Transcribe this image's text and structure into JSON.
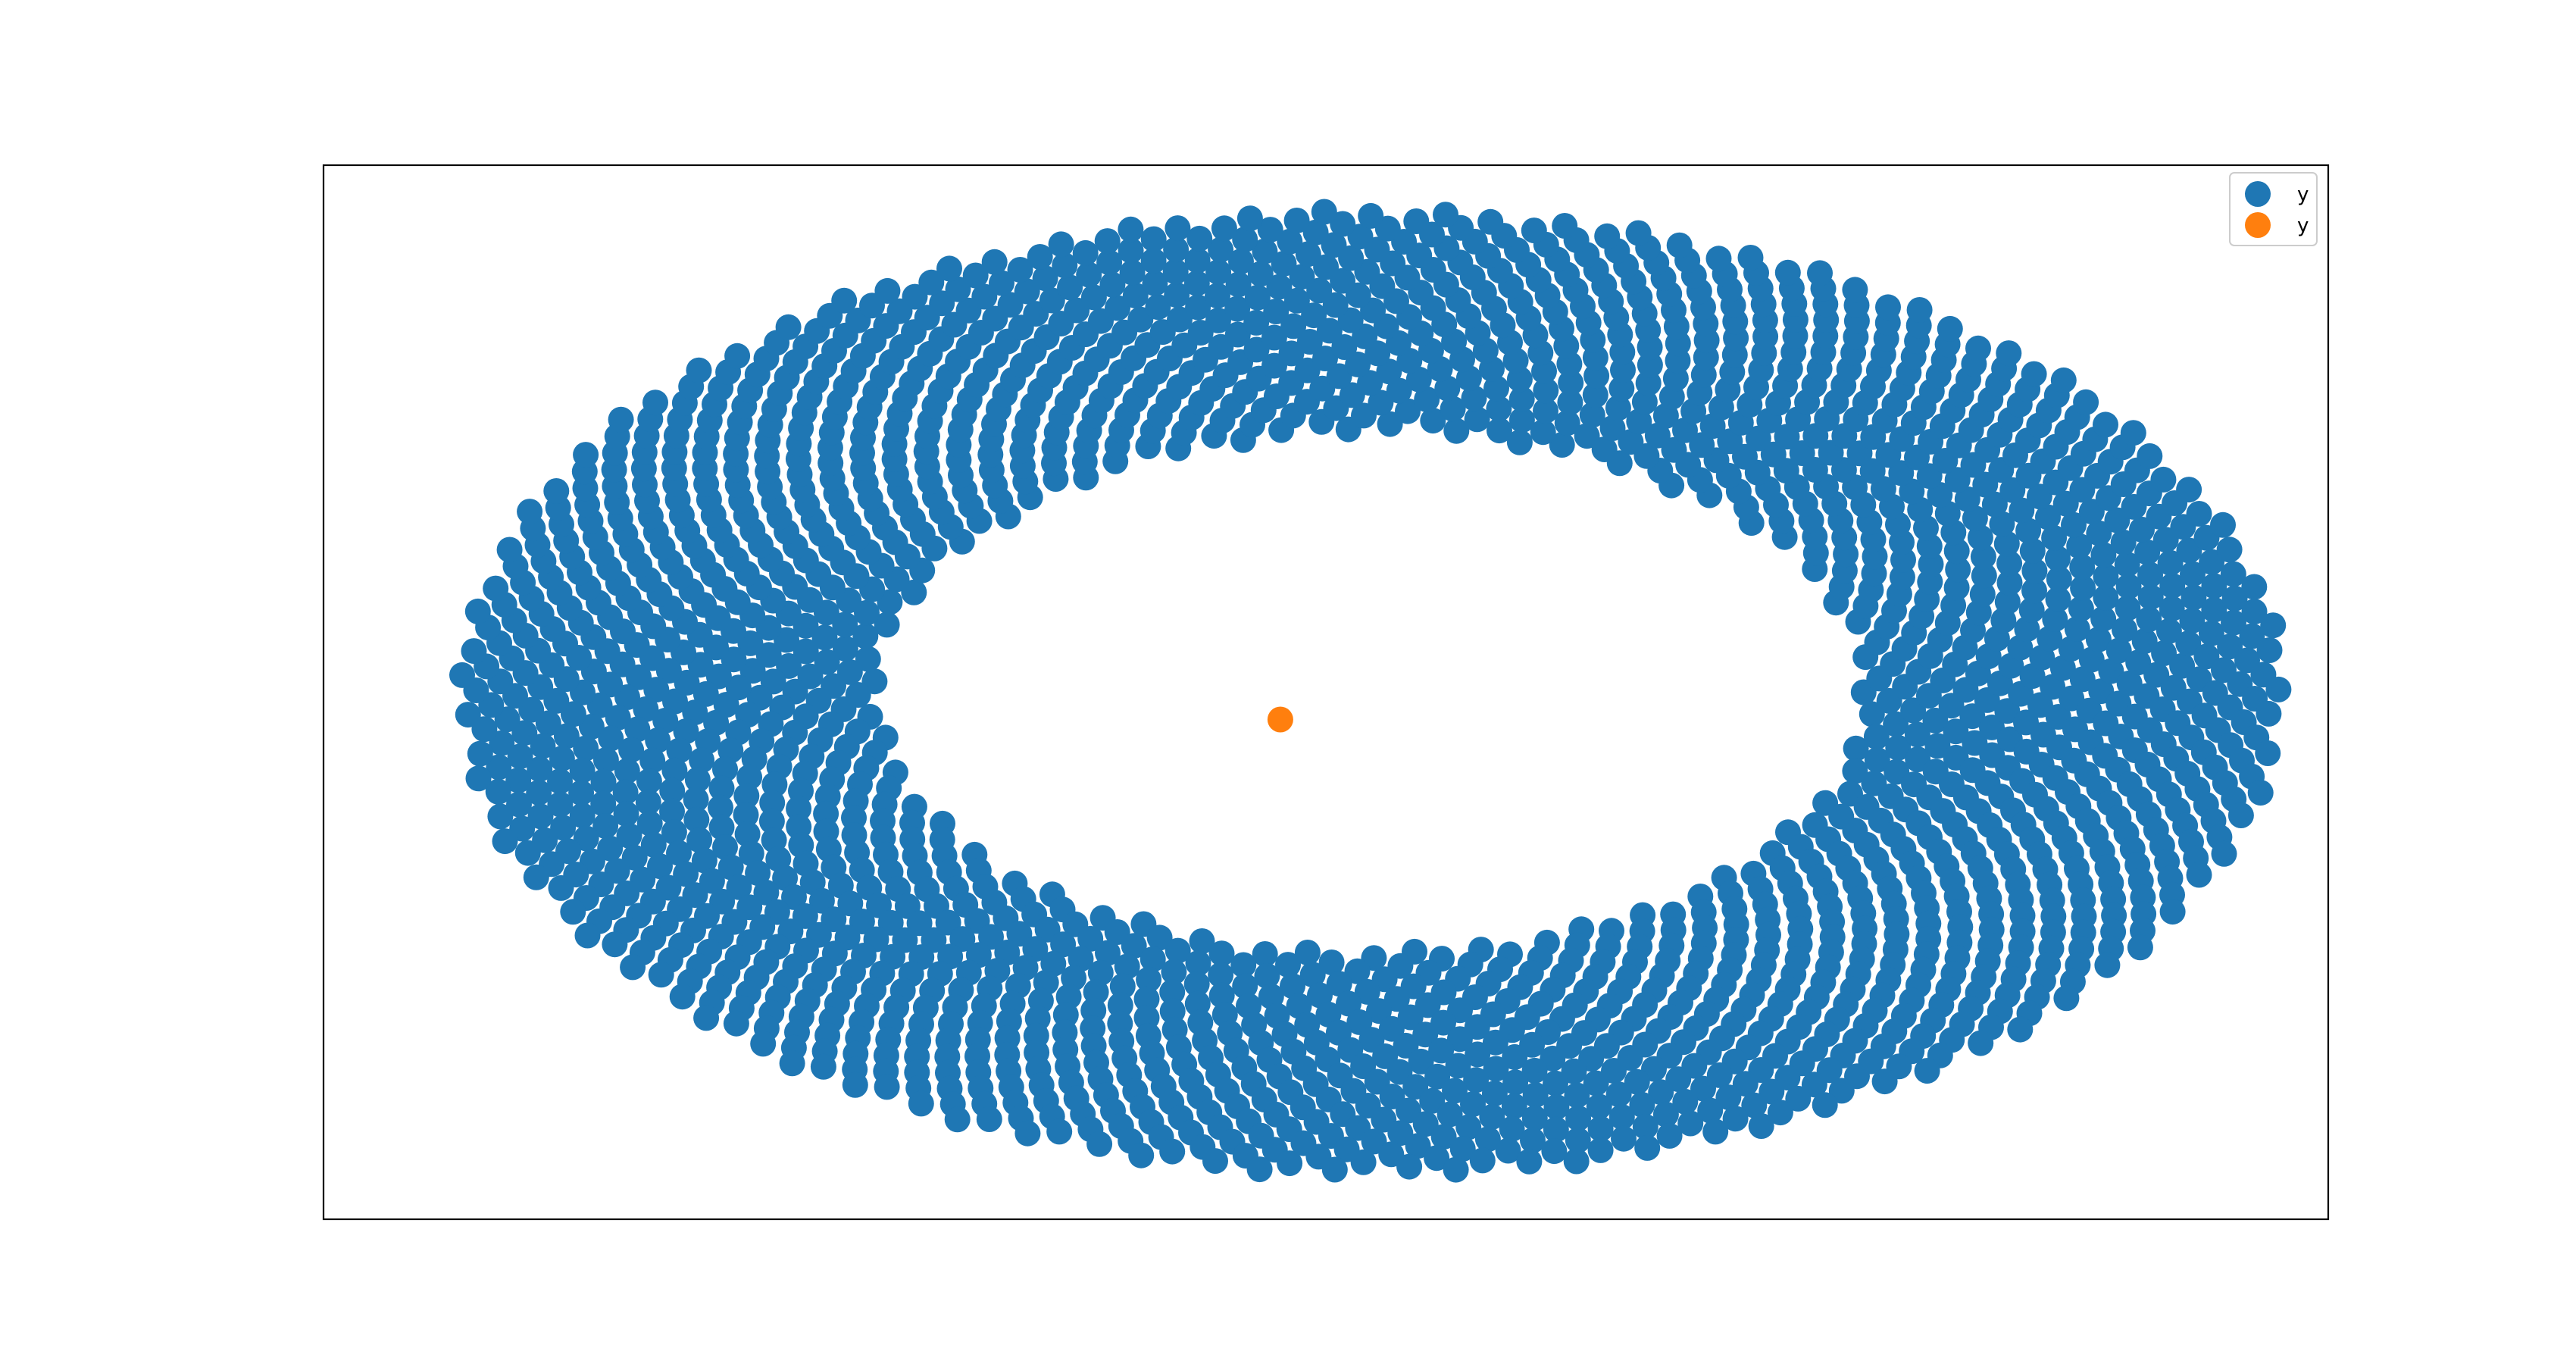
{
  "chart_data": {
    "type": "scatter",
    "title": "",
    "xlabel": "",
    "ylabel": "",
    "xlim": [
      -1.15,
      1.05
    ],
    "ylim": [
      -0.58,
      0.58
    ],
    "grid": false,
    "axis_ticks": false,
    "legend": {
      "placement": "top-right",
      "entries": [
        "y",
        "y"
      ]
    },
    "series": [
      {
        "name": "y",
        "color": "#1f77b4",
        "marker": "circle",
        "shape": "elliptical annulus",
        "center": [
          0.0,
          0.0
        ],
        "outer_semi_axes": [
          1.0,
          0.53
        ],
        "inner_semi_axes": [
          0.54,
          0.28
        ],
        "point_count": 2000
      },
      {
        "name": "y",
        "color": "#ff7f0e",
        "marker": "circle",
        "x": [
          -0.1
        ],
        "y": [
          -0.03
        ]
      }
    ]
  }
}
